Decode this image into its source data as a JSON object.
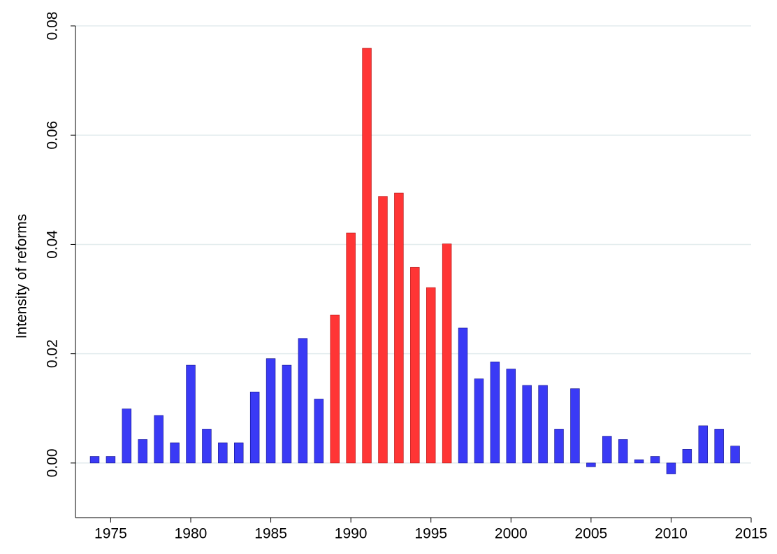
{
  "chart_data": {
    "type": "bar",
    "y_label": "Intensity of reforms",
    "x": [
      1974,
      1975,
      1976,
      1977,
      1978,
      1979,
      1980,
      1981,
      1982,
      1983,
      1984,
      1985,
      1986,
      1987,
      1988,
      1989,
      1990,
      1991,
      1992,
      1993,
      1994,
      1995,
      1996,
      1997,
      1998,
      1999,
      2000,
      2001,
      2002,
      2003,
      2004,
      2005,
      2006,
      2007,
      2008,
      2009,
      2010,
      2011,
      2012,
      2013,
      2014
    ],
    "values": [
      0.0012,
      0.0012,
      0.0099,
      0.0043,
      0.0087,
      0.0037,
      0.0179,
      0.0062,
      0.0037,
      0.0037,
      0.013,
      0.0191,
      0.0179,
      0.0228,
      0.0117,
      0.0271,
      0.0421,
      0.0759,
      0.0488,
      0.0494,
      0.0358,
      0.0321,
      0.0401,
      0.0247,
      0.0154,
      0.0185,
      0.0172,
      0.0142,
      0.0142,
      0.0062,
      0.0136,
      -0.0007,
      0.0049,
      0.0043,
      0.0006,
      0.0012,
      -0.002,
      0.0025,
      0.0068,
      0.0062,
      0.0031
    ],
    "colors": [
      "#3a3af5",
      "#3a3af5",
      "#3a3af5",
      "#3a3af5",
      "#3a3af5",
      "#3a3af5",
      "#3a3af5",
      "#3a3af5",
      "#3a3af5",
      "#3a3af5",
      "#3a3af5",
      "#3a3af5",
      "#3a3af5",
      "#3a3af5",
      "#3a3af5",
      "#ff3535",
      "#ff3535",
      "#ff3535",
      "#ff3535",
      "#ff3535",
      "#ff3535",
      "#ff3535",
      "#ff3535",
      "#3a3af5",
      "#3a3af5",
      "#3a3af5",
      "#3a3af5",
      "#3a3af5",
      "#3a3af5",
      "#3a3af5",
      "#3a3af5",
      "#3a3af5",
      "#3a3af5",
      "#3a3af5",
      "#3a3af5",
      "#3a3af5",
      "#3a3af5",
      "#3a3af5",
      "#3a3af5",
      "#3a3af5",
      "#3a3af5"
    ],
    "xlim": [
      1972.8,
      2015
    ],
    "xticks": [
      1975,
      1980,
      1985,
      1990,
      1995,
      2000,
      2005,
      2010,
      2015
    ],
    "ylim": [
      -0.01,
      0.08
    ],
    "yticks": [
      {
        "value": 0,
        "label": "0.00"
      },
      {
        "value": 0.02,
        "label": "0.02"
      },
      {
        "value": 0.04,
        "label": "0.04"
      },
      {
        "value": 0.06,
        "label": "0.06"
      },
      {
        "value": 0.08,
        "label": "0.08"
      }
    ],
    "grid": true
  }
}
